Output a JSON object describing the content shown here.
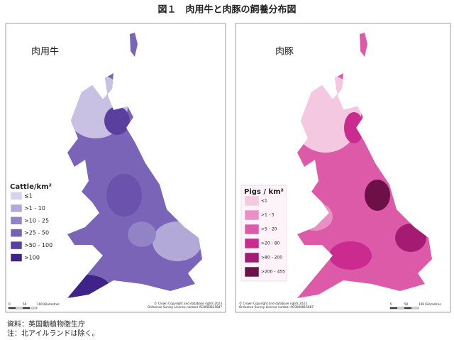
{
  "title": "図１　肉用牛と肉豚の飼養分布図",
  "maps": [
    {
      "label": "肉用牛",
      "legend_title": "Cattle/km²",
      "legend": [
        {
          "label": "≤1",
          "color": "#d8d2ec"
        },
        {
          "label": ">1 - 10",
          "color": "#b3a9d9"
        },
        {
          "label": ">10 - 25",
          "color": "#9282c6"
        },
        {
          "label": ">25 - 50",
          "color": "#7660b4"
        },
        {
          "label": ">50 - 100",
          "color": "#5a3f9f"
        },
        {
          "label": ">100",
          "color": "#3f2388"
        }
      ],
      "copyright": [
        "© Crown Copyright and database rights 2023",
        "Ordnance Survey Licence number AC0000815687"
      ],
      "scale_labels": [
        "0",
        "50",
        "100 Kilometres"
      ]
    },
    {
      "label": "肉豚",
      "legend_title": "Pigs / km²",
      "legend": [
        {
          "label": "≤1",
          "color": "#f5c8e2"
        },
        {
          "label": ">1 - 5",
          "color": "#ea90c6"
        },
        {
          "label": ">5 - 20",
          "color": "#dc5aa8"
        },
        {
          "label": ">20 - 80",
          "color": "#cb2a8e"
        },
        {
          "label": ">80 - 200",
          "color": "#a51a72"
        },
        {
          "label": ">200 - 455",
          "color": "#6d1048"
        }
      ],
      "copyright": [
        "© Crown Copyright and database rights 2023",
        "Ordnance Survey Licence number AC0000815687"
      ],
      "scale_labels": [
        "0",
        "50",
        "100 Kilometres"
      ]
    }
  ],
  "notes": [
    "資料：英国動植物衛生庁",
    "注：北アイルランドは除く。"
  ]
}
